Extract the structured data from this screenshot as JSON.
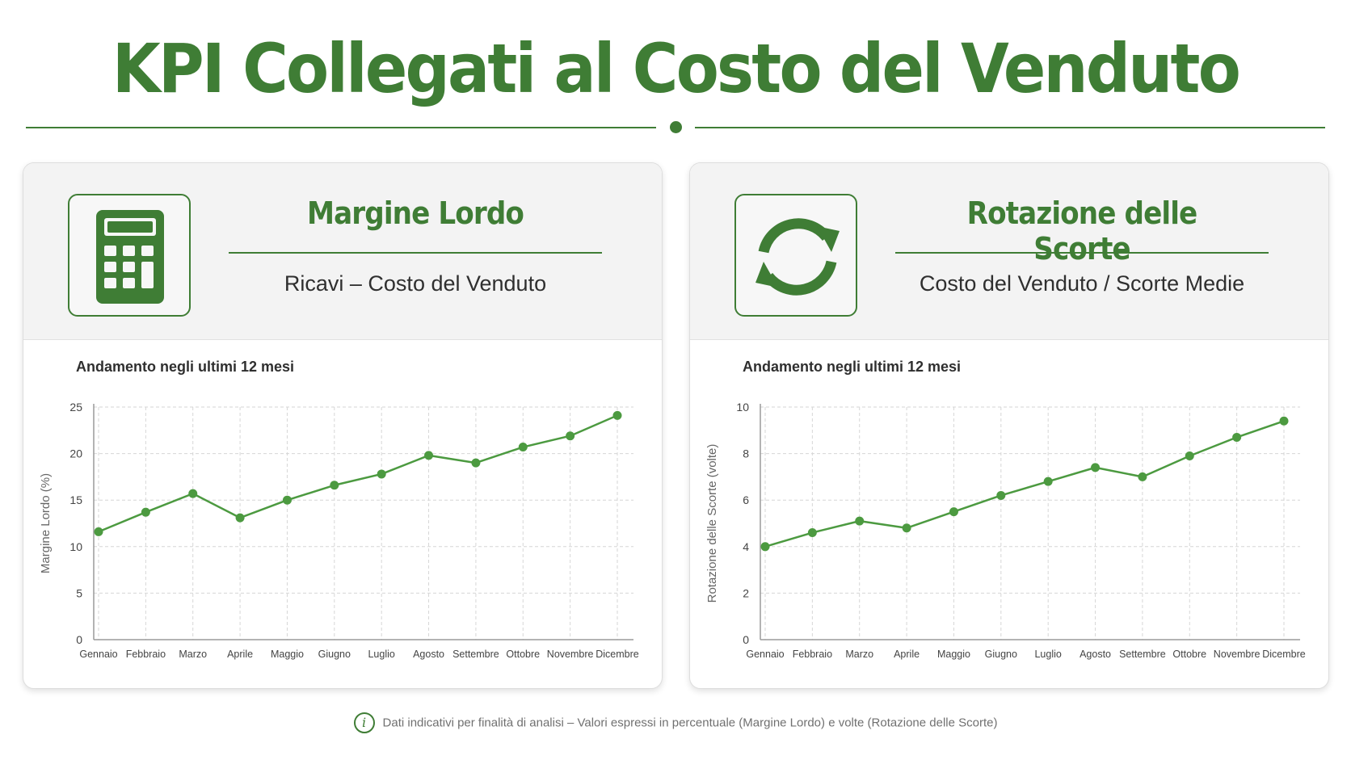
{
  "page": {
    "title": "KPI Collegati al Costo del Venduto"
  },
  "cards": [
    {
      "title": "Margine Lordo",
      "formula": "Ricavi – Costo del Venduto",
      "icon": "calculator-icon",
      "chart_subtitle": "Andamento negli ultimi 12 mesi"
    },
    {
      "title": "Rotazione delle Scorte",
      "formula": "Costo del Venduto / Scorte Medie",
      "icon": "refresh-cycle-icon",
      "chart_subtitle": "Andamento negli ultimi 12 mesi"
    }
  ],
  "footnote": "Dati indicativi per finalità di analisi – Valori espressi in percentuale (Margine Lordo) e volte (Rotazione delle Scorte)",
  "colors": {
    "accent": "#3f7d35",
    "line": "#4c9a40",
    "grid": "#d6d6d6"
  },
  "chart_data": [
    {
      "type": "line",
      "categories": [
        "Gennaio",
        "Febbraio",
        "Marzo",
        "Aprile",
        "Maggio",
        "Giugno",
        "Luglio",
        "Agosto",
        "Settembre",
        "Ottobre",
        "Novembre",
        "Dicembre"
      ],
      "values": [
        11.6,
        13.7,
        15.7,
        13.1,
        15.0,
        16.6,
        17.8,
        19.8,
        19.0,
        20.7,
        21.9,
        24.1
      ],
      "title": "",
      "xlabel": "",
      "ylabel": "Margine Lordo (%)",
      "ylim": [
        0,
        25
      ],
      "yticks": [
        0,
        5,
        10,
        15,
        20,
        25
      ],
      "grid": true
    },
    {
      "type": "line",
      "categories": [
        "Gennaio",
        "Febbraio",
        "Marzo",
        "Aprile",
        "Maggio",
        "Giugno",
        "Luglio",
        "Agosto",
        "Settembre",
        "Ottobre",
        "Novembre",
        "Dicembre"
      ],
      "values": [
        4.0,
        4.6,
        5.1,
        4.8,
        5.5,
        6.2,
        6.8,
        7.4,
        7.0,
        7.9,
        8.7,
        9.4
      ],
      "title": "",
      "xlabel": "",
      "ylabel": "Rotazione delle Scorte (volte)",
      "ylim": [
        0,
        10
      ],
      "yticks": [
        0,
        2,
        4,
        6,
        8,
        10
      ],
      "grid": true
    }
  ]
}
